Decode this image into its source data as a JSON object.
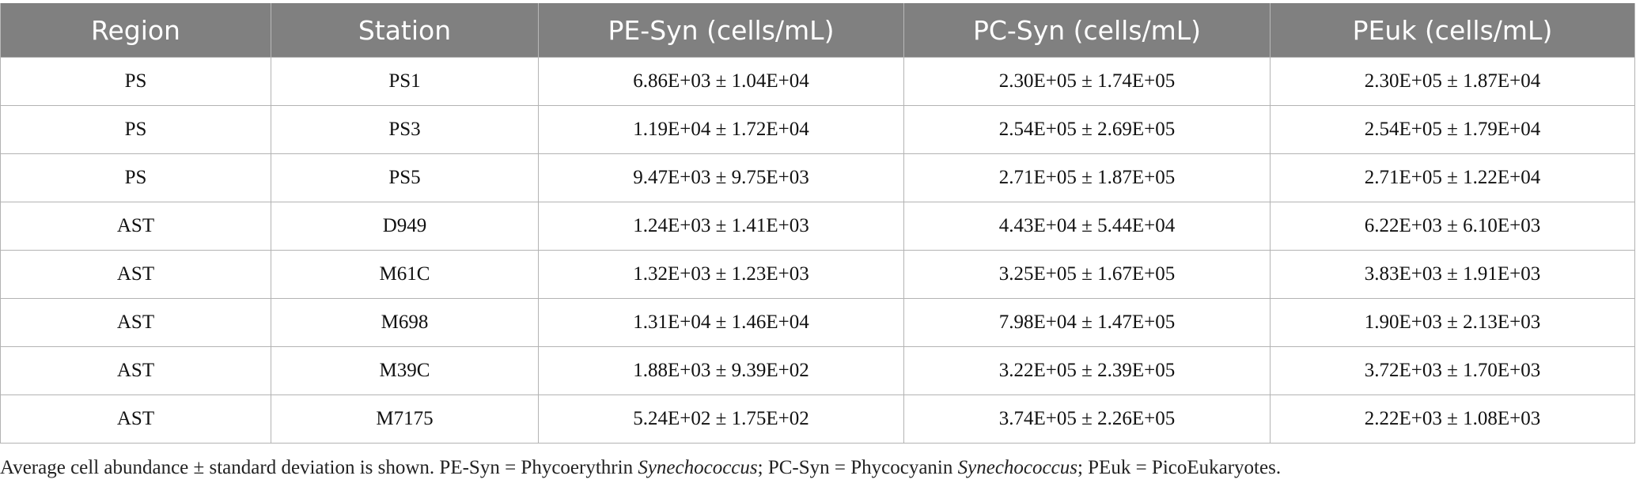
{
  "table": {
    "headers": [
      "Region",
      "Station",
      "PE-Syn (cells/mL)",
      "PC-Syn (cells/mL)",
      "PEuk (cells/mL)"
    ],
    "rows": [
      [
        "PS",
        "PS1",
        "6.86E+03 ± 1.04E+04",
        "2.30E+05 ± 1.74E+05",
        "2.30E+05 ± 1.87E+04"
      ],
      [
        "PS",
        "PS3",
        "1.19E+04 ± 1.72E+04",
        "2.54E+05 ± 2.69E+05",
        "2.54E+05 ± 1.79E+04"
      ],
      [
        "PS",
        "PS5",
        "9.47E+03 ± 9.75E+03",
        "2.71E+05 ± 1.87E+05",
        "2.71E+05 ± 1.22E+04"
      ],
      [
        "AST",
        "D949",
        "1.24E+03 ± 1.41E+03",
        "4.43E+04 ± 5.44E+04",
        "6.22E+03 ± 6.10E+03"
      ],
      [
        "AST",
        "M61C",
        "1.32E+03 ± 1.23E+03",
        "3.25E+05 ± 1.67E+05",
        "3.83E+03 ± 1.91E+03"
      ],
      [
        "AST",
        "M698",
        "1.31E+04 ± 1.46E+04",
        "7.98E+04 ± 1.47E+05",
        "1.90E+03 ± 2.13E+03"
      ],
      [
        "AST",
        "M39C",
        "1.88E+03 ± 9.39E+02",
        "3.22E+05 ± 2.39E+05",
        "3.72E+03 ± 1.70E+03"
      ],
      [
        "AST",
        "M7175",
        "5.24E+02 ± 1.75E+02",
        "3.74E+05 ± 2.26E+05",
        "2.22E+03 ± 1.08E+03"
      ]
    ]
  },
  "footnote": {
    "part1": "Average cell abundance ± standard deviation is shown. PE-Syn = Phycoerythrin ",
    "italic1": "Synechococcus",
    "part2": "; PC-Syn = Phycocyanin ",
    "italic2": "Synechococcus",
    "part3": "; PEuk = PicoEukaryotes."
  },
  "colors": {
    "header_background": "#808080",
    "header_text": "#ffffff",
    "grid_lines": "#b3b3b3"
  }
}
